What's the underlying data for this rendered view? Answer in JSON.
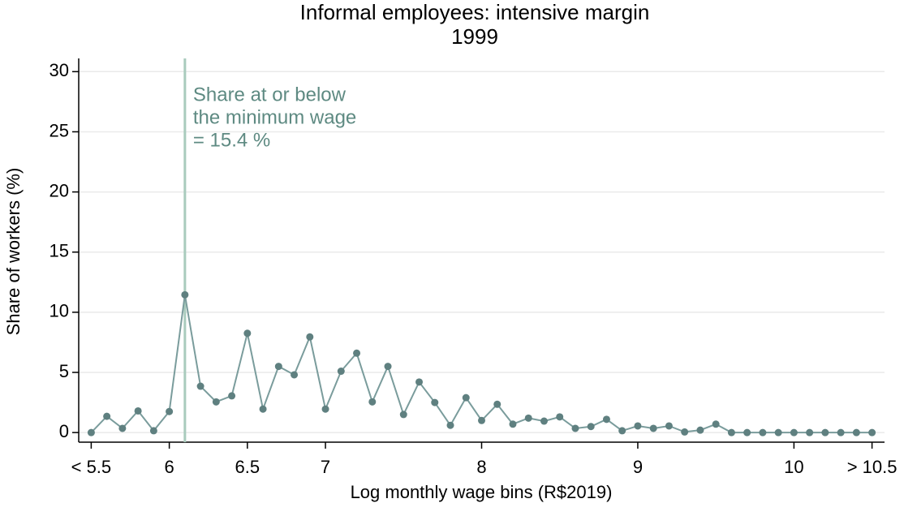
{
  "chart_data": {
    "type": "line",
    "title": [
      "Informal employees: intensive margin",
      "1999"
    ],
    "xlabel": "Log monthly wage bins (R$2019)",
    "ylabel": "Share of workers (%)",
    "x": [
      5.5,
      5.6,
      5.7,
      5.8,
      5.9,
      6.0,
      6.1,
      6.2,
      6.3,
      6.4,
      6.5,
      6.6,
      6.7,
      6.8,
      6.9,
      7.0,
      7.1,
      7.2,
      7.3,
      7.4,
      7.5,
      7.6,
      7.7,
      7.8,
      7.9,
      8.0,
      8.1,
      8.2,
      8.3,
      8.4,
      8.5,
      8.6,
      8.7,
      8.8,
      8.9,
      9.0,
      9.1,
      9.2,
      9.3,
      9.4,
      9.5,
      9.6,
      9.7,
      9.8,
      9.9,
      10.0,
      10.1,
      10.2,
      10.3,
      10.4,
      10.5
    ],
    "values": [
      0,
      1.35,
      0.35,
      1.8,
      0.15,
      1.75,
      11.45,
      3.85,
      2.55,
      3.05,
      8.25,
      1.95,
      5.5,
      4.8,
      7.95,
      1.95,
      5.1,
      6.6,
      2.55,
      5.5,
      1.5,
      4.2,
      2.5,
      0.6,
      2.9,
      1.0,
      2.35,
      0.7,
      1.2,
      0.95,
      1.3,
      0.35,
      0.5,
      1.1,
      0.15,
      0.55,
      0.35,
      0.55,
      0.05,
      0.2,
      0.7,
      0,
      0,
      0,
      0,
      0,
      0,
      0,
      0,
      0,
      0
    ],
    "color": "#7a9c9c",
    "marker_color": "#5f8080",
    "vline": {
      "x": 6.1,
      "color": "#a9cbbd",
      "label": [
        "Share at or below",
        "the minimum wage",
        "= 15.4 %"
      ],
      "label_color": "#5e8a82"
    },
    "xlim": [
      5.42,
      10.58
    ],
    "ylim": [
      -0.8,
      31.1
    ],
    "xticks": [
      {
        "value": 5.5,
        "label": "< 5.5"
      },
      6,
      6.5,
      7,
      8,
      9,
      10,
      {
        "value": 10.5,
        "label": "> 10.5"
      }
    ],
    "yticks": [
      0,
      5,
      10,
      15,
      20,
      25,
      30
    ],
    "grid": true
  }
}
